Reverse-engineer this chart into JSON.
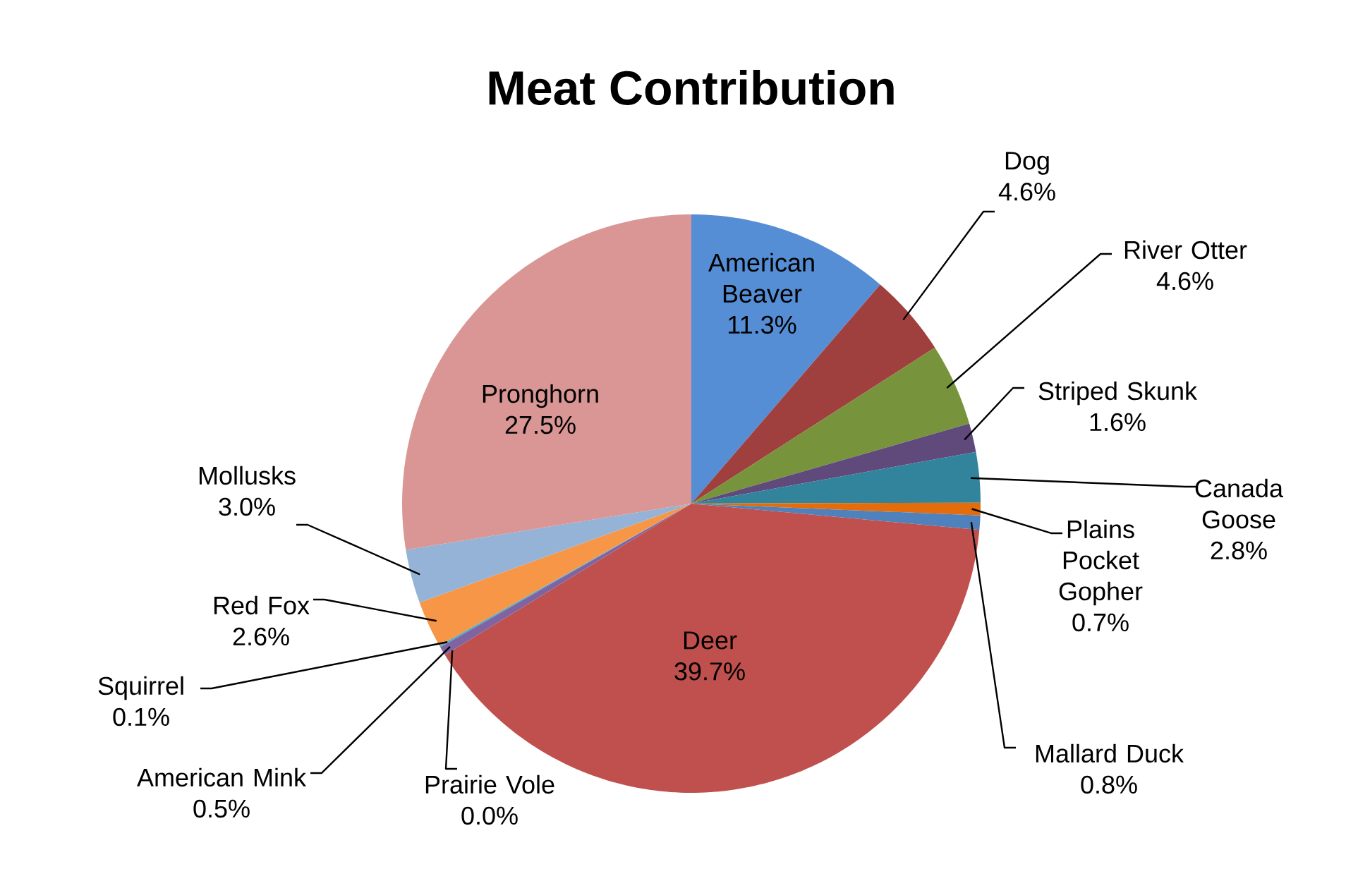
{
  "chart_data": {
    "type": "pie",
    "title": "Meat Contribution",
    "categories": [
      "American Beaver",
      "Dog",
      "River Otter",
      "Striped Skunk",
      "Canada Goose",
      "Plains Pocket Gopher",
      "Mallard Duck",
      "Deer",
      "Prairie Vole",
      "American Mink",
      "Squirrel",
      "Red Fox",
      "Mollusks",
      "Pronghorn"
    ],
    "values": [
      11.3,
      4.6,
      4.6,
      1.6,
      2.8,
      0.7,
      0.8,
      39.7,
      0.0,
      0.5,
      0.1,
      2.6,
      3.0,
      27.5
    ],
    "value_labels": [
      "11.3%",
      "4.6%",
      "4.6%",
      "1.6%",
      "2.8%",
      "0.7%",
      "0.8%",
      "39.7%",
      "0.0%",
      "0.5%",
      "0.1%",
      "2.6%",
      "3.0%",
      "27.5%"
    ],
    "colors": [
      "#558ed5",
      "#a0403e",
      "#77933c",
      "#604a7b",
      "#31849b",
      "#e46c0a",
      "#4f81bd",
      "#c0504d",
      "#9bbb59",
      "#8064a2",
      "#4bacc6",
      "#f79646",
      "#95b3d7",
      "#d99694"
    ]
  }
}
